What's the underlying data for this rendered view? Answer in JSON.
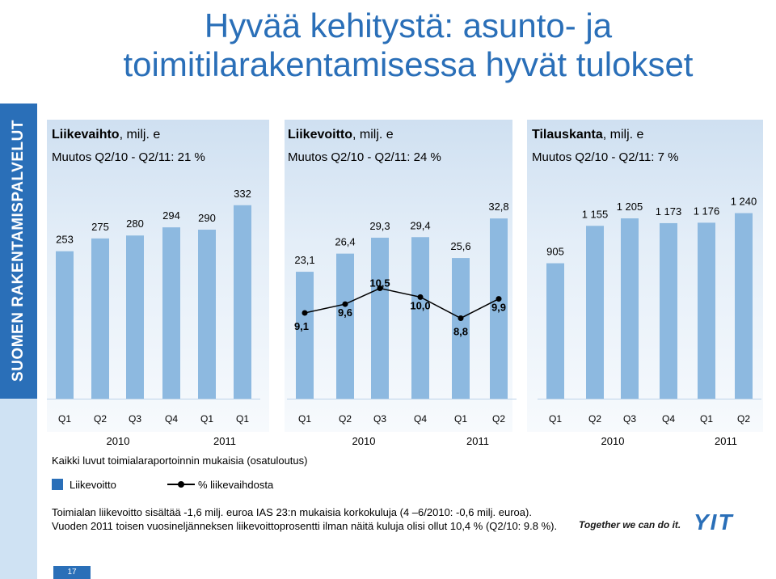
{
  "title": "Hyvää kehitystä: asunto- ja toimitilarakentamisessa hyvät tulokset",
  "sidebar_text": "SUOMEN RAKENTAMISPALVELUT",
  "colors": {
    "bar": "#8db9e0",
    "line": "#000000",
    "accent": "#2a6fb8",
    "legend_bar": "#2a6fb8"
  },
  "chart_data": [
    {
      "type": "bar",
      "title_bold": "Liikevaihto",
      "title_rest": ", milj. e",
      "subtitle": "Muutos Q2/10 - Q2/11: 21 %",
      "categories": [
        "Q1",
        "Q2",
        "Q3",
        "Q4",
        "Q1",
        "Q1"
      ],
      "values": [
        253,
        275,
        280,
        294,
        290,
        332
      ],
      "labels": [
        "253",
        "275",
        "280",
        "294",
        "290",
        "332"
      ],
      "years": [
        "2010",
        "2011"
      ],
      "ylim": [
        0,
        340
      ]
    },
    {
      "type": "bar+line",
      "title_bold": "Liikevoitto",
      "title_rest": ", milj. e",
      "subtitle": "Muutos Q2/10 - Q2/11: 24 %",
      "categories": [
        "Q1",
        "Q2",
        "Q3",
        "Q4",
        "Q1",
        "Q2"
      ],
      "values": [
        23.1,
        26.4,
        29.3,
        29.4,
        25.6,
        32.8
      ],
      "labels": [
        "23,1",
        "26,4",
        "29,3",
        "29,4",
        "25,6",
        "32,8"
      ],
      "line_values": [
        9.1,
        9.6,
        10.5,
        10.0,
        8.8,
        9.9
      ],
      "line_labels": [
        "9,1",
        "9,6",
        "10,5",
        "10,0",
        "8,8",
        "9,9"
      ],
      "years": [
        "2010",
        "2011"
      ],
      "ylim": [
        0,
        34
      ]
    },
    {
      "type": "bar",
      "title_bold": "Tilauskanta",
      "title_rest": ", milj. e",
      "subtitle": "Muutos Q2/10 - Q2/11: 7 %",
      "categories": [
        "Q1",
        "Q2",
        "Q3",
        "Q4",
        "Q1",
        "Q2"
      ],
      "values": [
        905,
        1155,
        1205,
        1173,
        1176,
        1240
      ],
      "labels": [
        "905",
        "1 155",
        "1 205",
        "1 173",
        "1 176",
        "1 240"
      ],
      "years": [
        "2010",
        "2011"
      ],
      "ylim": [
        0,
        1270
      ]
    }
  ],
  "note": "Kaikki luvut toimialaraportoinnin mukaisia (osatuloutus)",
  "legend": {
    "bar_label": "Liikevoitto",
    "line_label": "% liikevaihdosta"
  },
  "footnote": "Toimialan liikevoitto sisältää -1,6 milj. euroa IAS 23:n mukaisia korkokuluja (4 –6/2010: -0,6 milj. euroa). Vuoden 2011 toisen vuosineljänneksen liikevoittoprosentti ilman näitä kuluja olisi ollut 10,4 % (Q2/10: 9.8 %).",
  "slogan": "Together we can do it.",
  "logo": "YIT",
  "page_number": "17"
}
